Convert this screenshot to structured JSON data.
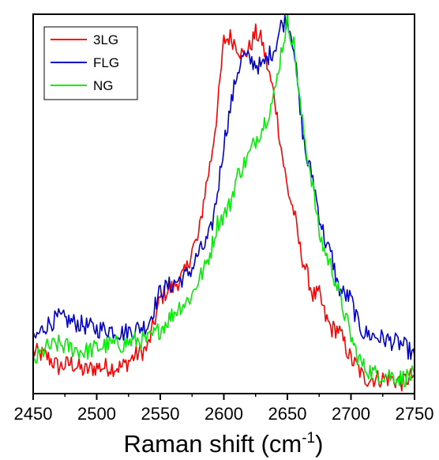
{
  "chart_data": {
    "type": "line",
    "title": "",
    "xlabel": "Raman shift (cm",
    "xlabel_sup": "-1",
    "xlabel_end": ")",
    "ylabel": "",
    "xlim": [
      2450,
      2750
    ],
    "ylim": [
      0,
      1.0
    ],
    "x_ticks": [
      2450,
      2500,
      2550,
      2600,
      2650,
      2700,
      2750
    ],
    "y_ticks_labeled": false,
    "grid": false,
    "legend_position": "top-left",
    "series": [
      {
        "name": "3LG",
        "color": "#ff0000",
        "x": [
          2450,
          2460,
          2470,
          2480,
          2490,
          2500,
          2510,
          2520,
          2530,
          2540,
          2550,
          2555,
          2560,
          2565,
          2570,
          2575,
          2580,
          2585,
          2590,
          2595,
          2600,
          2605,
          2610,
          2615,
          2620,
          2625,
          2630,
          2635,
          2640,
          2645,
          2650,
          2655,
          2660,
          2665,
          2670,
          2675,
          2680,
          2685,
          2690,
          2695,
          2700,
          2705,
          2710,
          2720,
          2730,
          2740,
          2750
        ],
        "y": [
          0.11,
          0.1,
          0.07,
          0.08,
          0.06,
          0.07,
          0.07,
          0.07,
          0.1,
          0.12,
          0.25,
          0.27,
          0.28,
          0.3,
          0.32,
          0.38,
          0.41,
          0.53,
          0.62,
          0.75,
          0.93,
          0.94,
          0.92,
          0.89,
          0.91,
          0.95,
          0.93,
          0.85,
          0.78,
          0.65,
          0.54,
          0.48,
          0.38,
          0.32,
          0.26,
          0.26,
          0.2,
          0.17,
          0.17,
          0.13,
          0.09,
          0.07,
          0.04,
          0.04,
          0.04,
          0.03,
          0.05
        ]
      },
      {
        "name": "FLG",
        "color": "#0000cc",
        "x": [
          2450,
          2460,
          2470,
          2480,
          2490,
          2500,
          2510,
          2520,
          2530,
          2540,
          2550,
          2555,
          2560,
          2565,
          2570,
          2575,
          2580,
          2585,
          2590,
          2595,
          2600,
          2605,
          2610,
          2615,
          2620,
          2625,
          2630,
          2635,
          2640,
          2645,
          2650,
          2655,
          2660,
          2665,
          2670,
          2675,
          2680,
          2685,
          2690,
          2695,
          2700,
          2705,
          2710,
          2720,
          2730,
          2740,
          2750
        ],
        "y": [
          0.14,
          0.18,
          0.2,
          0.19,
          0.18,
          0.17,
          0.17,
          0.16,
          0.17,
          0.18,
          0.27,
          0.28,
          0.29,
          0.3,
          0.31,
          0.33,
          0.37,
          0.39,
          0.43,
          0.53,
          0.66,
          0.75,
          0.84,
          0.89,
          0.88,
          0.87,
          0.86,
          0.89,
          0.91,
          0.97,
          0.99,
          0.92,
          0.74,
          0.62,
          0.57,
          0.47,
          0.4,
          0.36,
          0.28,
          0.26,
          0.25,
          0.19,
          0.16,
          0.15,
          0.14,
          0.13,
          0.1
        ]
      },
      {
        "name": "NG",
        "color": "#00ee00",
        "x": [
          2450,
          2460,
          2470,
          2480,
          2490,
          2500,
          2510,
          2520,
          2530,
          2540,
          2550,
          2555,
          2560,
          2565,
          2570,
          2575,
          2580,
          2585,
          2590,
          2595,
          2600,
          2605,
          2610,
          2615,
          2620,
          2625,
          2630,
          2635,
          2640,
          2645,
          2650,
          2655,
          2660,
          2665,
          2670,
          2675,
          2680,
          2685,
          2690,
          2695,
          2700,
          2705,
          2710,
          2720,
          2730,
          2740,
          2750
        ],
        "y": [
          0.08,
          0.12,
          0.13,
          0.12,
          0.11,
          0.12,
          0.13,
          0.13,
          0.14,
          0.14,
          0.17,
          0.19,
          0.21,
          0.23,
          0.24,
          0.26,
          0.3,
          0.33,
          0.38,
          0.45,
          0.47,
          0.5,
          0.57,
          0.6,
          0.63,
          0.67,
          0.7,
          0.74,
          0.79,
          0.9,
          0.98,
          0.92,
          0.76,
          0.64,
          0.55,
          0.42,
          0.37,
          0.33,
          0.27,
          0.21,
          0.15,
          0.1,
          0.07,
          0.05,
          0.05,
          0.04,
          0.05
        ]
      }
    ]
  }
}
